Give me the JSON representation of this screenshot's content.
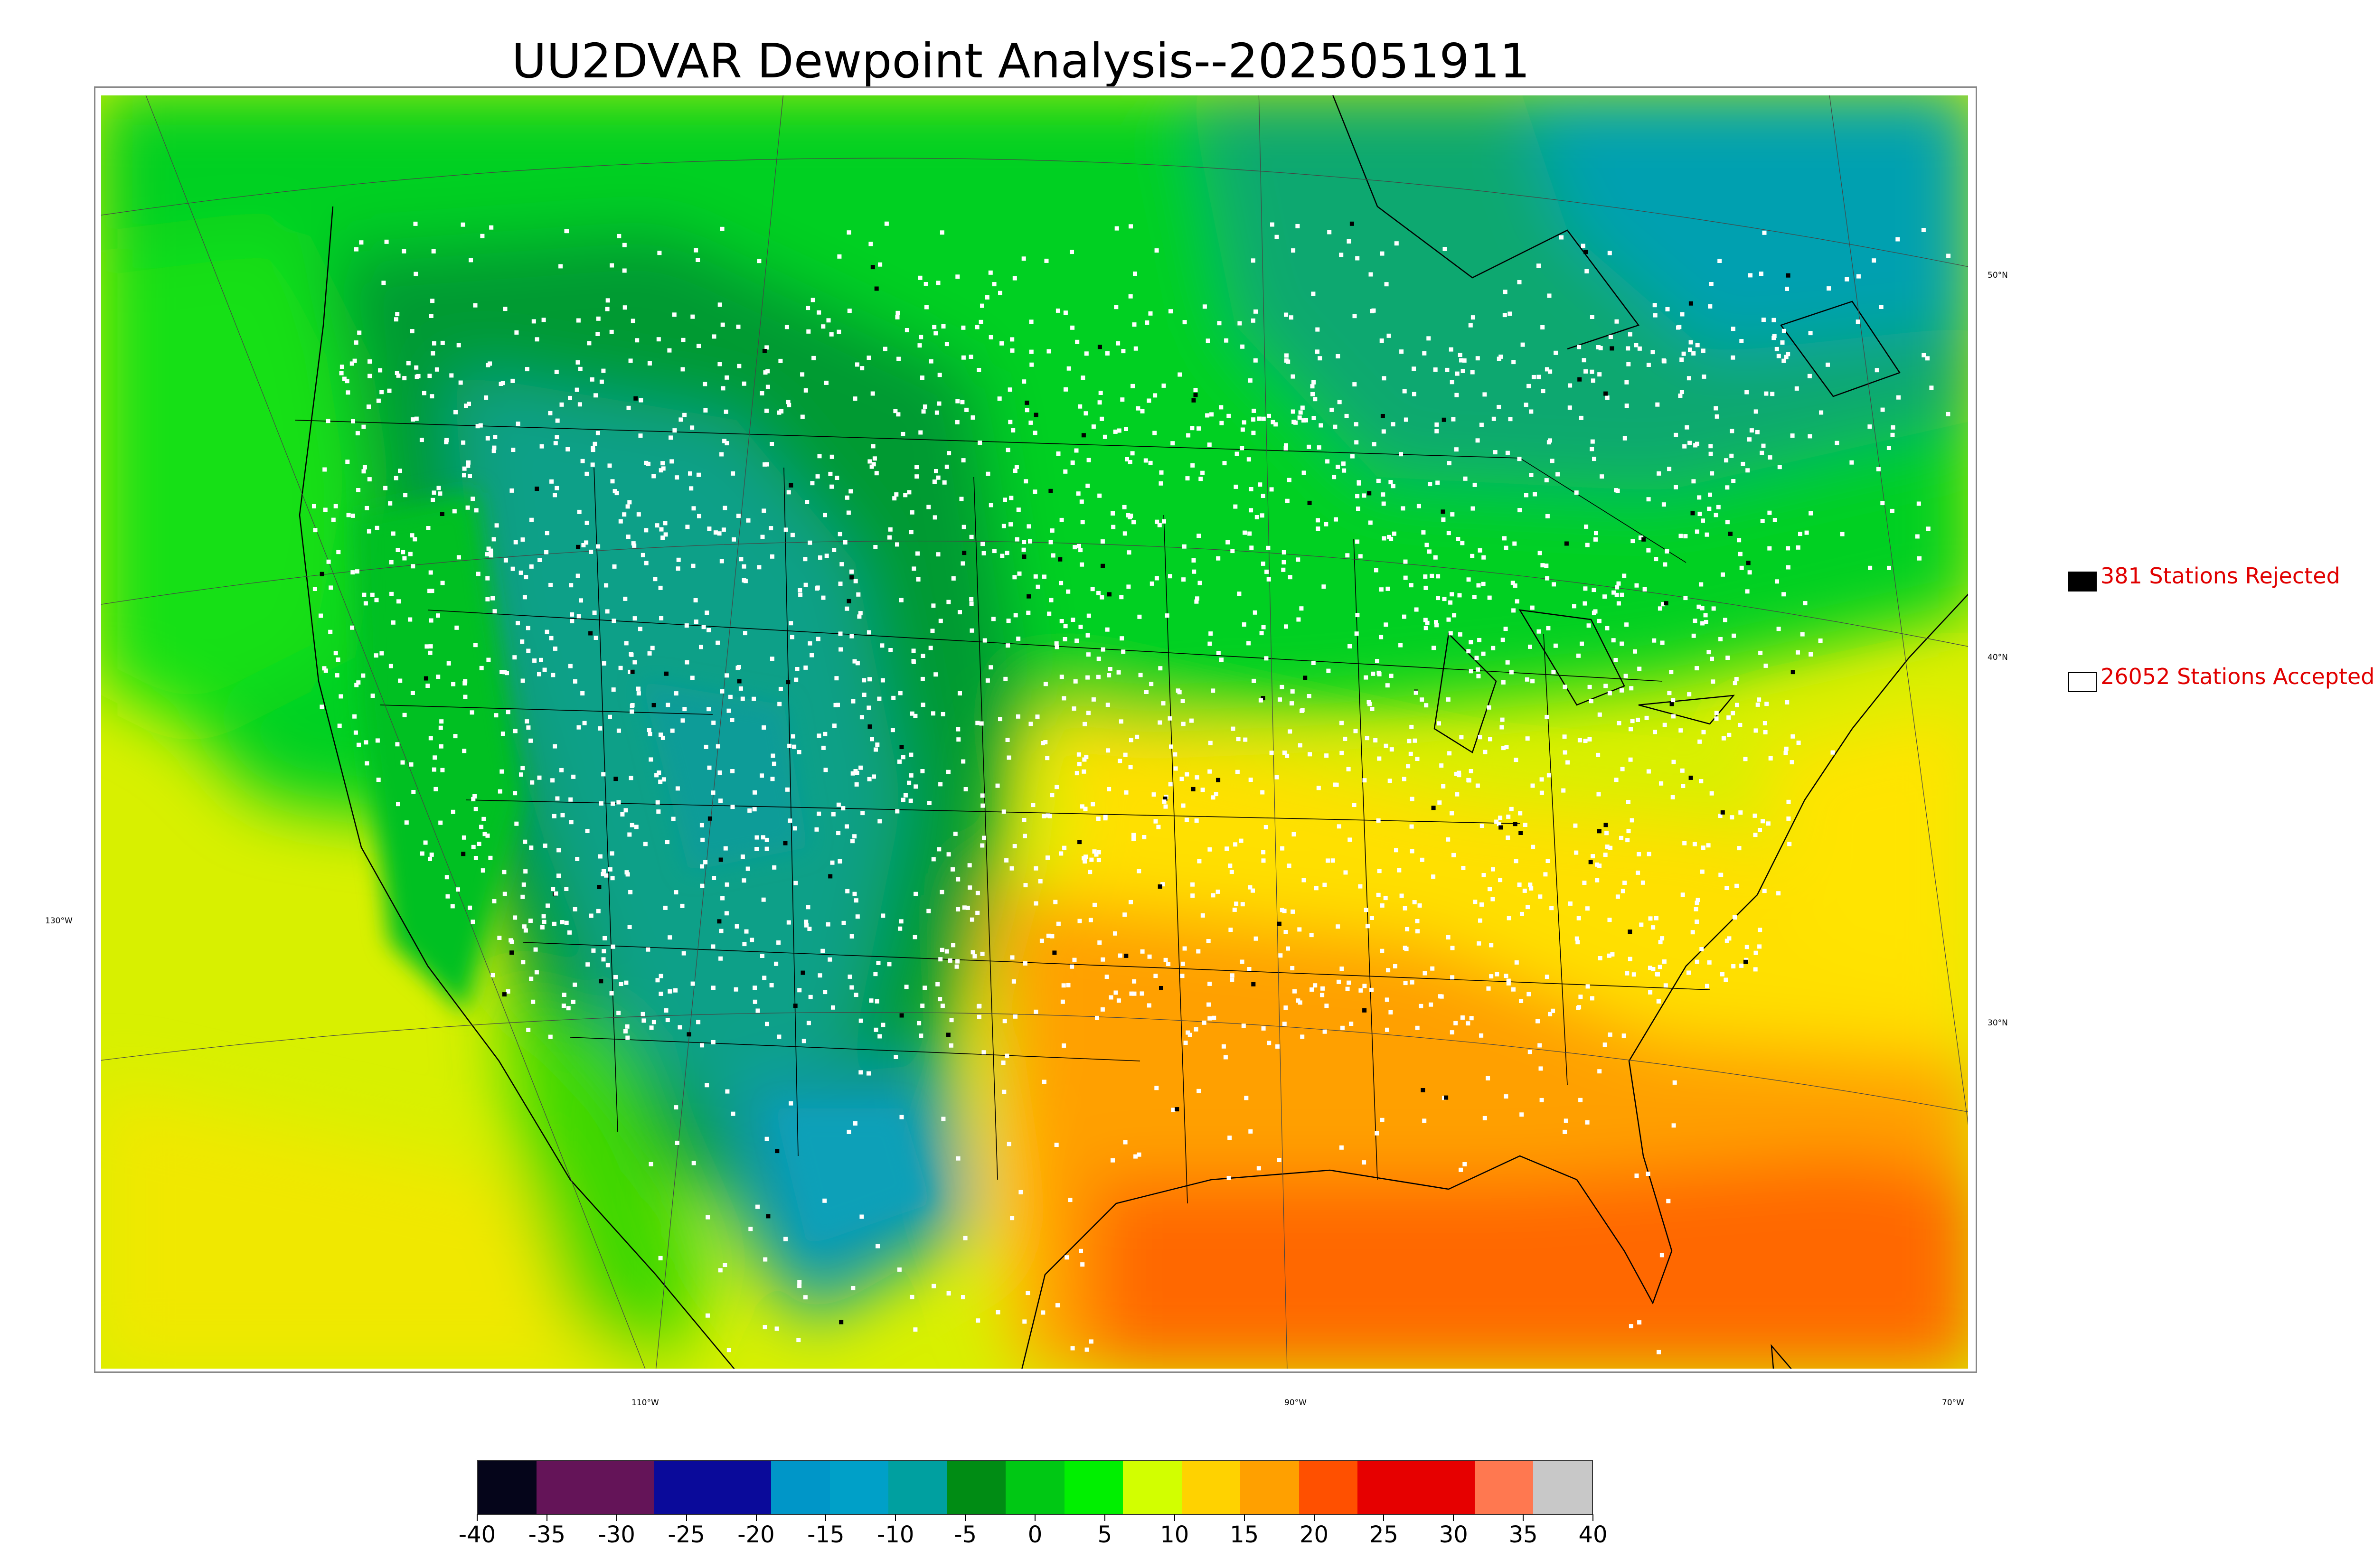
{
  "title": "UU2DVAR Dewpoint Analysis--2025051911",
  "legend": {
    "rejected_label": "381 Stations Rejected",
    "accepted_label": "26052 Stations Accepted",
    "rejected_color": "#000000",
    "accepted_color": "#ffffff",
    "text_color": "#e00000"
  },
  "lat_labels": [
    "50°N",
    "40°N",
    "30°N"
  ],
  "lon_labels": [
    "130°W",
    "110°W",
    "90°W",
    "70°W"
  ],
  "colorbar": {
    "ticks": [
      "-40",
      "-35",
      "-30",
      "-25",
      "-20",
      "-15",
      "-10",
      "-5",
      "0",
      "5",
      "10",
      "15",
      "20",
      "25",
      "30",
      "35",
      "40"
    ],
    "stops": [
      "#05051a",
      "#641458",
      "#641458",
      "#0a0a9a",
      "#0a0a9a",
      "#0096c8",
      "#00a0c8",
      "#00a0a0",
      "#008c14",
      "#00c814",
      "#00f000",
      "#d2ff00",
      "#ffd200",
      "#ffa000",
      "#ff5000",
      "#e60000",
      "#e60000",
      "#ff7850",
      "#c8c8c8"
    ]
  },
  "chart_data": {
    "type": "heatmap",
    "title": "UU2DVAR Dewpoint Analysis--2025051911",
    "colorbar_range": [
      -40,
      40
    ],
    "colorbar_ticks": [
      -40,
      -35,
      -30,
      -25,
      -20,
      -15,
      -10,
      -5,
      0,
      5,
      10,
      15,
      20,
      25,
      30,
      35,
      40
    ],
    "legend": [
      {
        "label": "381 Stations Rejected",
        "marker": "black square"
      },
      {
        "label": "26052 Stations Accepted",
        "marker": "white square"
      }
    ],
    "map_labels": [
      "50°N",
      "40°N",
      "30°N",
      "130°W",
      "110°W",
      "90°W",
      "70°W"
    ]
  }
}
